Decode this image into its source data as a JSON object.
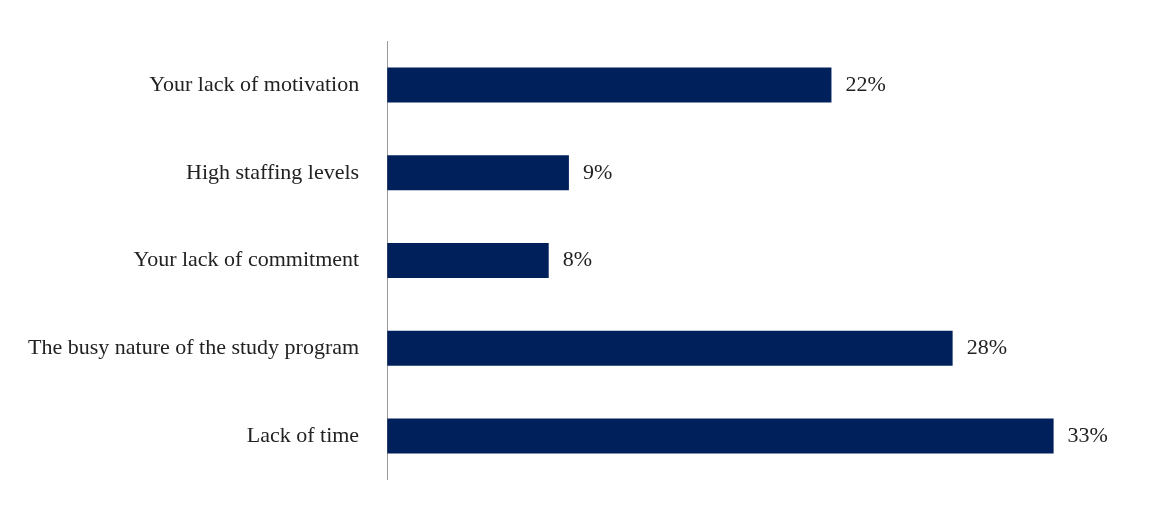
{
  "chart_data": {
    "type": "bar",
    "orientation": "horizontal",
    "categories": [
      "Your lack of motivation",
      "High staffing levels",
      "Your lack of commitment",
      "The busy nature of the study program",
      "Lack of time"
    ],
    "values": [
      22,
      9,
      8,
      28,
      33
    ],
    "value_labels": [
      "22%",
      "9%",
      "8%",
      "28%",
      "33%"
    ],
    "color": "#00205b",
    "legend": false,
    "tick_labels": "y"
  }
}
